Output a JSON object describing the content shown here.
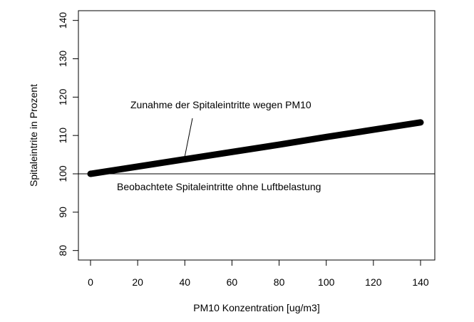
{
  "chart_data": {
    "type": "line",
    "title": "",
    "xlabel": "PM10 Konzentration [ug/m3]",
    "ylabel": "Spitaleintrite in Prozent",
    "xlim": [
      0,
      140
    ],
    "ylim": [
      78,
      142
    ],
    "x_ticks": [
      0,
      20,
      40,
      60,
      80,
      100,
      120,
      140
    ],
    "y_ticks": [
      80,
      90,
      100,
      110,
      120,
      130,
      140
    ],
    "grid": false,
    "legend": null,
    "series": [
      {
        "name": "Zunahme der Spitaleintritte wegen PM10",
        "x": [
          0,
          20,
          40,
          60,
          80,
          100,
          120,
          140
        ],
        "y": [
          100.0,
          101.9,
          103.8,
          105.7,
          107.6,
          109.6,
          111.5,
          113.4
        ],
        "style": "thick"
      }
    ],
    "reference_lines": [
      {
        "type": "horizontal",
        "y": 100,
        "label": "Beobachtete Spitaleintritte ohne Luftbelastung"
      }
    ],
    "annotations": [
      {
        "text": "Zunahme der Spitaleintritte wegen PM10",
        "pointer_to": {
          "x": 40,
          "y": 103.8
        }
      },
      {
        "text": "Beobachtete Spitaleintritte ohne Luftbelastung",
        "near": {
          "x": 10,
          "y": 96.5
        }
      }
    ]
  }
}
